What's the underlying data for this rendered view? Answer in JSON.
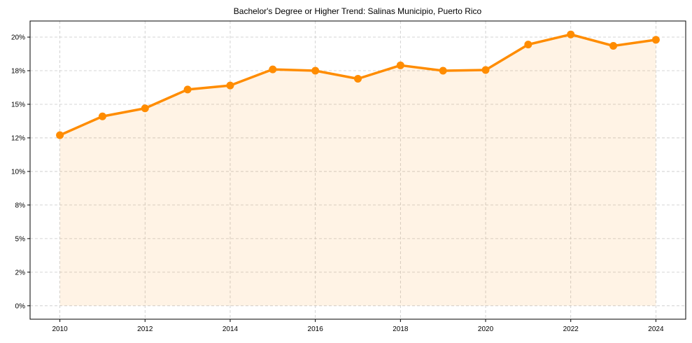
{
  "chart_data": {
    "type": "line",
    "title": "Bachelor's Degree or Higher Trend: Salinas Municipio, Puerto Rico",
    "xlabel": "",
    "ylabel": "",
    "x": [
      2010,
      2011,
      2012,
      2013,
      2014,
      2015,
      2016,
      2017,
      2018,
      2019,
      2020,
      2021,
      2022,
      2023,
      2024
    ],
    "series": [
      {
        "name": "Bachelor's Degree or Higher (%)",
        "values": [
          12.7,
          14.1,
          14.7,
          16.1,
          16.4,
          17.6,
          17.5,
          16.9,
          17.9,
          17.5,
          17.55,
          19.45,
          20.2,
          19.35,
          19.8
        ],
        "color": "#ff8c00",
        "fill": true,
        "fill_color": "#ff8c00",
        "fill_alpha": 0.1,
        "marker": "circle"
      }
    ],
    "xlim": [
      2009.3,
      2024.7
    ],
    "ylim": [
      -1.0,
      21.2
    ],
    "xticks": [
      2010,
      2012,
      2014,
      2016,
      2018,
      2020,
      2022,
      2024
    ],
    "xtick_labels": [
      "2010",
      "2012",
      "2014",
      "2016",
      "2018",
      "2020",
      "2022",
      "2024"
    ],
    "yticks": [
      0,
      2.5,
      5,
      7.5,
      10,
      12.5,
      15,
      17.5,
      20
    ],
    "ytick_labels": [
      "0%",
      "2%",
      "5%",
      "8%",
      "10%",
      "12%",
      "15%",
      "18%",
      "20%"
    ],
    "grid": true,
    "legend": null
  }
}
